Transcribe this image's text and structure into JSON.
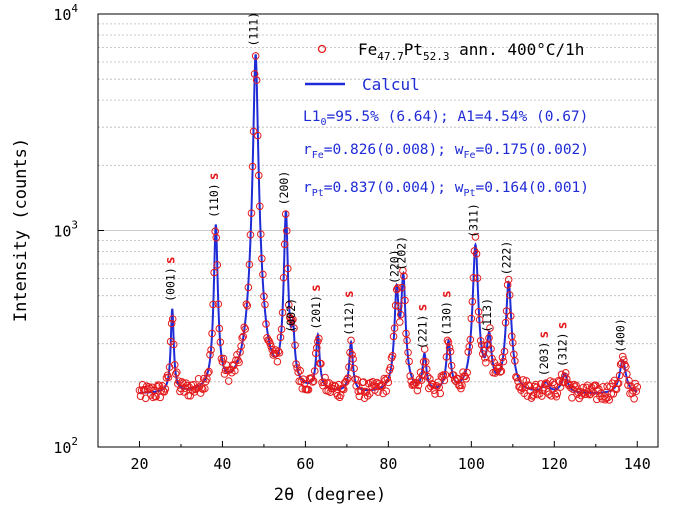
{
  "chart_data": {
    "type": "scatter",
    "xlabel": "2θ (degree)",
    "ylabel": "Intensity (counts)",
    "xlim": [
      10,
      145
    ],
    "ylim": [
      100,
      10000
    ],
    "y_scale": "log",
    "grid": "horizontal dotted minor + solid major",
    "x_ticks": [
      "20",
      "40",
      "60",
      "80",
      "100",
      "120",
      "140"
    ],
    "y_ticks": [
      {
        "base": "10",
        "exp": "2"
      },
      {
        "base": "10",
        "exp": "3"
      },
      {
        "base": "10",
        "exp": "4"
      }
    ],
    "legend_position": "top-right",
    "legend": {
      "observed": {
        "base": "Fe",
        "sub1": "47.7",
        "mid": "Pt",
        "sub2": "52.3",
        "suffix": " ann. 400°C/1h"
      },
      "calc": "Calcul"
    },
    "fit_params": {
      "line1_a": "L1",
      "line1_a_sub": "0",
      "line1_b": "=95.5% (6.64); A1=4.54% (0.67)",
      "line2_r": "r",
      "line2_r_sub": "Fe",
      "line2_r_val": "=0.826(0.008); w",
      "line2_w_sub": "Fe",
      "line2_w_val": "=0.175(0.002)",
      "line3_r": "r",
      "line3_r_sub": "Pt",
      "line3_r_val": "=0.837(0.004); w",
      "line3_w_sub": "Pt",
      "line3_w_val": "=0.164(0.001)"
    },
    "baseline": 175,
    "peaks": [
      {
        "label": "(001)",
        "superlattice": true,
        "x": 27.9,
        "y": 430,
        "w": 0.35
      },
      {
        "label": "(110)",
        "superlattice": true,
        "x": 38.4,
        "y": 1050,
        "w": 0.4
      },
      {
        "label": "(111)",
        "superlattice": false,
        "x": 48.0,
        "y": 6500,
        "w": 0.45
      },
      {
        "label": "(200)",
        "superlattice": false,
        "x": 55.3,
        "y": 1200,
        "w": 0.42
      },
      {
        "label": "(002)",
        "superlattice": false,
        "x": 57.0,
        "y": 310,
        "w": 0.4
      },
      {
        "label": "(201)",
        "superlattice": true,
        "x": 63.0,
        "y": 320,
        "w": 0.45
      },
      {
        "label": "(112)",
        "superlattice": true,
        "x": 71.0,
        "y": 300,
        "w": 0.45
      },
      {
        "label": "(220)",
        "superlattice": false,
        "x": 82.0,
        "y": 520,
        "w": 0.5
      },
      {
        "label": "(202)",
        "superlattice": false,
        "x": 83.6,
        "y": 600,
        "w": 0.5
      },
      {
        "label": "(221)",
        "superlattice": true,
        "x": 88.7,
        "y": 260,
        "w": 0.5
      },
      {
        "label": "(130)",
        "superlattice": true,
        "x": 94.5,
        "y": 300,
        "w": 0.55
      },
      {
        "label": "(311)",
        "superlattice": false,
        "x": 101.0,
        "y": 850,
        "w": 0.6
      },
      {
        "label": "(113)",
        "superlattice": false,
        "x": 104.3,
        "y": 310,
        "w": 0.6
      },
      {
        "label": "(222)",
        "superlattice": false,
        "x": 109.0,
        "y": 570,
        "w": 0.65
      },
      {
        "label": "(203)",
        "superlattice": true,
        "x": 118.0,
        "y": 195,
        "w": 0.8
      },
      {
        "label": "(312)",
        "superlattice": true,
        "x": 122.5,
        "y": 215,
        "w": 0.8
      },
      {
        "label": "(400)",
        "superlattice": false,
        "x": 136.5,
        "y": 250,
        "w": 0.85
      }
    ],
    "superlattice_mark": "s"
  }
}
